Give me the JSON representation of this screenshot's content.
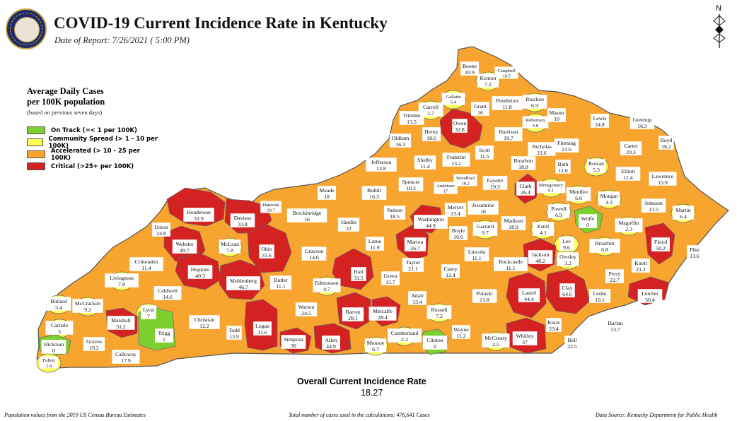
{
  "header": {
    "title": "COVID-19 Current Incidence Rate in Kentucky",
    "date_of_report": "Date of Report: 7/26/2021 ( 5:00 PM)",
    "seal_text": "COMMONWEALTH OF KENTUCKY"
  },
  "north_label": "N",
  "legend": {
    "title_line1": "Average Daily Cases",
    "title_line2": "per 100K population",
    "note": "(based on previous seven days)",
    "items": [
      {
        "label": "On Track (=< 1 per 100K)",
        "color": "#7dcf2f"
      },
      {
        "label": "Community Spread (> 1 - 10 per 100K)",
        "color": "#ffff55"
      },
      {
        "label": "Accelerated (> 10 - 25 per 100K)",
        "color": "#f8a530"
      },
      {
        "label": "Critical (>25+ per 100K)",
        "color": "#d42222"
      }
    ]
  },
  "overall": {
    "label": "Overall Current Incidence Rate",
    "value": "18.27"
  },
  "footer": {
    "left": "Population values from the 2019 US Census Bureau Estimates",
    "center": "Total number of cases used in the calculations: 476,641 Cases",
    "right": "Data Source: Kentucky Department for Public Health"
  },
  "state_color": "#f8a530",
  "counties": [
    {
      "name": "Boone",
      "rate": "10.9",
      "category": "accelerated"
    },
    {
      "name": "Campbell",
      "rate": "10.5",
      "category": "accelerated"
    },
    {
      "name": "Kenton",
      "rate": "7.2",
      "category": "community"
    },
    {
      "name": "Gallatin",
      "rate": "6.4",
      "category": "community"
    },
    {
      "name": "Carroll",
      "rate": "2.7",
      "category": "community"
    },
    {
      "name": "Owen",
      "rate": "32.8",
      "category": "critical"
    },
    {
      "name": "Grant",
      "rate": "16",
      "category": "accelerated"
    },
    {
      "name": "Pendleton",
      "rate": "11.8",
      "category": "accelerated"
    },
    {
      "name": "Bracken",
      "rate": "6.9",
      "category": "community"
    },
    {
      "name": "Mason",
      "rate": "10",
      "category": "accelerated"
    },
    {
      "name": "Robertson",
      "rate": "6.8",
      "category": "community"
    },
    {
      "name": "Lewis",
      "rate": "24.8",
      "category": "accelerated"
    },
    {
      "name": "Greenup",
      "rate": "16.3",
      "category": "accelerated"
    },
    {
      "name": "Boyd",
      "rate": "16.2",
      "category": "accelerated"
    },
    {
      "name": "Trimble",
      "rate": "13.5",
      "category": "accelerated"
    },
    {
      "name": "Henry",
      "rate": "18.6",
      "category": "accelerated"
    },
    {
      "name": "Harrison",
      "rate": "19.7",
      "category": "accelerated"
    },
    {
      "name": "Nicholas",
      "rate": "21.6",
      "category": "accelerated"
    },
    {
      "name": "Fleming",
      "rate": "21.6",
      "category": "accelerated"
    },
    {
      "name": "Carter",
      "rate": "20.3",
      "category": "accelerated"
    },
    {
      "name": "Oldham",
      "rate": "16.3",
      "category": "accelerated"
    },
    {
      "name": "Shelby",
      "rate": "11.4",
      "category": "accelerated"
    },
    {
      "name": "Franklin",
      "rate": "13.2",
      "category": "accelerated"
    },
    {
      "name": "Scott",
      "rate": "11.5",
      "category": "accelerated"
    },
    {
      "name": "Bourbon",
      "rate": "18.8",
      "category": "accelerated"
    },
    {
      "name": "Bath",
      "rate": "12.6",
      "category": "accelerated"
    },
    {
      "name": "Rowan",
      "rate": "5.3",
      "category": "community"
    },
    {
      "name": "Elliott",
      "rate": "11.4",
      "category": "accelerated"
    },
    {
      "name": "Lawrence",
      "rate": "15.9",
      "category": "accelerated"
    },
    {
      "name": "Jefferson",
      "rate": "13.8",
      "category": "accelerated"
    },
    {
      "name": "Spencer",
      "rate": "10.3",
      "category": "accelerated"
    },
    {
      "name": "Woodford",
      "rate": "18.2",
      "category": "accelerated"
    },
    {
      "name": "Anderson",
      "rate": "17",
      "category": "accelerated"
    },
    {
      "name": "Fayette",
      "rate": "19.3",
      "category": "accelerated"
    },
    {
      "name": "Clark",
      "rate": "26.4",
      "category": "critical"
    },
    {
      "name": "Montgomery",
      "rate": "9.1",
      "category": "community"
    },
    {
      "name": "Menifee",
      "rate": "6.6",
      "category": "community"
    },
    {
      "name": "Morgan",
      "rate": "4.3",
      "category": "community"
    },
    {
      "name": "Johnson",
      "rate": "13.5",
      "category": "accelerated"
    },
    {
      "name": "Martin",
      "rate": "6.4",
      "category": "community"
    },
    {
      "name": "Meade",
      "rate": "18",
      "category": "accelerated"
    },
    {
      "name": "Bullitt",
      "rate": "16.3",
      "category": "accelerated"
    },
    {
      "name": "Nelson",
      "rate": "18.5",
      "category": "accelerated"
    },
    {
      "name": "Washington",
      "rate": "44.9",
      "category": "critical"
    },
    {
      "name": "Mercer",
      "rate": "23.4",
      "category": "accelerated"
    },
    {
      "name": "Jessamine",
      "rate": "18",
      "category": "accelerated"
    },
    {
      "name": "Madison",
      "rate": "18.9",
      "category": "accelerated"
    },
    {
      "name": "Estill",
      "rate": "4.1",
      "category": "community"
    },
    {
      "name": "Powell",
      "rate": "6.9",
      "category": "community"
    },
    {
      "name": "Wolfe",
      "rate": "0",
      "category": "on_track"
    },
    {
      "name": "Magoffin",
      "rate": "2.3",
      "category": "community"
    },
    {
      "name": "Floyd",
      "rate": "50.2",
      "category": "critical"
    },
    {
      "name": "Pike",
      "rate": "13.6",
      "category": "accelerated"
    },
    {
      "name": "Hancock",
      "rate": "19.7",
      "category": "accelerated"
    },
    {
      "name": "Breckinridge",
      "rate": "16",
      "category": "accelerated"
    },
    {
      "name": "Hardin",
      "rate": "22",
      "category": "accelerated"
    },
    {
      "name": "Larue",
      "rate": "11.9",
      "category": "accelerated"
    },
    {
      "name": "Marion",
      "rate": "26.7",
      "category": "critical"
    },
    {
      "name": "Boyle",
      "rate": "16.6",
      "category": "accelerated"
    },
    {
      "name": "Garrard",
      "rate": "9.7",
      "category": "community"
    },
    {
      "name": "Lee",
      "rate": "9.6",
      "category": "community"
    },
    {
      "name": "Breathitt",
      "rate": "6.8",
      "category": "community"
    },
    {
      "name": "Knott",
      "rate": "21.2",
      "category": "accelerated"
    },
    {
      "name": "Henderson",
      "rate": "31.9",
      "category": "critical"
    },
    {
      "name": "Daviess",
      "rate": "33.8",
      "category": "critical"
    },
    {
      "name": "Union",
      "rate": "24.8",
      "category": "accelerated"
    },
    {
      "name": "Webster",
      "rate": "49.7",
      "category": "critical"
    },
    {
      "name": "McLean",
      "rate": "7.8",
      "category": "community"
    },
    {
      "name": "Ohio",
      "rate": "31.6",
      "category": "critical"
    },
    {
      "name": "Grayson",
      "rate": "14.6",
      "category": "accelerated"
    },
    {
      "name": "Hart",
      "rate": "31.5",
      "category": "critical"
    },
    {
      "name": "Taylor",
      "rate": "21.1",
      "category": "accelerated"
    },
    {
      "name": "Lincoln",
      "rate": "11.1",
      "category": "accelerated"
    },
    {
      "name": "Rockcastle",
      "rate": "11.1",
      "category": "accelerated"
    },
    {
      "name": "Jackson",
      "rate": "48.2",
      "category": "critical"
    },
    {
      "name": "Owsley",
      "rate": "3.2",
      "category": "community"
    },
    {
      "name": "Perry",
      "rate": "22.7",
      "category": "accelerated"
    },
    {
      "name": "Crittenden",
      "rate": "11.4",
      "category": "accelerated"
    },
    {
      "name": "Hopkins",
      "rate": "40.3",
      "category": "critical"
    },
    {
      "name": "Muhlenberg",
      "rate": "46.7",
      "category": "critical"
    },
    {
      "name": "Butler",
      "rate": "11.1",
      "category": "accelerated"
    },
    {
      "name": "Edmonson",
      "rate": "4.7",
      "category": "community"
    },
    {
      "name": "Green",
      "rate": "15.7",
      "category": "accelerated"
    },
    {
      "name": "Casey",
      "rate": "12.4",
      "category": "accelerated"
    },
    {
      "name": "Pulaski",
      "rate": "21.8",
      "category": "accelerated"
    },
    {
      "name": "Laurel",
      "rate": "44.4",
      "category": "critical"
    },
    {
      "name": "Clay",
      "rate": "64.6",
      "category": "critical"
    },
    {
      "name": "Leslie",
      "rate": "10.1",
      "category": "accelerated"
    },
    {
      "name": "Letcher",
      "rate": "50.4",
      "category": "critical"
    },
    {
      "name": "Livingston",
      "rate": "7.8",
      "category": "community"
    },
    {
      "name": "Caldwell",
      "rate": "14.6",
      "category": "accelerated"
    },
    {
      "name": "Lyon",
      "rate": "7",
      "category": "community"
    },
    {
      "name": "Christian",
      "rate": "12.2",
      "category": "accelerated"
    },
    {
      "name": "Todd",
      "rate": "13.9",
      "category": "accelerated"
    },
    {
      "name": "Logan",
      "rate": "31.6",
      "category": "critical"
    },
    {
      "name": "Warren",
      "rate": "24.5",
      "category": "accelerated"
    },
    {
      "name": "Barren",
      "rate": "28.1",
      "category": "critical"
    },
    {
      "name": "Metcalfe",
      "rate": "28.4",
      "category": "critical"
    },
    {
      "name": "Adair",
      "rate": "13.4",
      "category": "accelerated"
    },
    {
      "name": "Russell",
      "rate": "7.2",
      "category": "community"
    },
    {
      "name": "Knox",
      "rate": "23.4",
      "category": "accelerated"
    },
    {
      "name": "Harlan",
      "rate": "13.7",
      "category": "accelerated"
    },
    {
      "name": "Ballard",
      "rate": "5.4",
      "category": "community"
    },
    {
      "name": "McCracken",
      "rate": "9.2",
      "category": "community"
    },
    {
      "name": "Marshall",
      "rate": "31.2",
      "category": "critical"
    },
    {
      "name": "Trigg",
      "rate": "1",
      "category": "on_track"
    },
    {
      "name": "Carlisle",
      "rate": "3",
      "category": "community"
    },
    {
      "name": "Graves",
      "rate": "19.2",
      "category": "accelerated"
    },
    {
      "name": "Calloway",
      "rate": "17.9",
      "category": "accelerated"
    },
    {
      "name": "Hickman",
      "rate": "0",
      "category": "on_track"
    },
    {
      "name": "Fulton",
      "rate": "2.4",
      "category": "community"
    },
    {
      "name": "Simpson",
      "rate": "30",
      "category": "critical"
    },
    {
      "name": "Allen",
      "rate": "44.9",
      "category": "critical"
    },
    {
      "name": "Monroe",
      "rate": "6.7",
      "category": "community"
    },
    {
      "name": "Cumberland",
      "rate": "2.2",
      "category": "community"
    },
    {
      "name": "Clinton",
      "rate": "0",
      "category": "on_track"
    },
    {
      "name": "Wayne",
      "rate": "11.2",
      "category": "accelerated"
    },
    {
      "name": "McCreary",
      "rate": "2.5",
      "category": "community"
    },
    {
      "name": "Whitley",
      "rate": "37",
      "category": "critical"
    },
    {
      "name": "Bell",
      "rate": "22.5",
      "category": "accelerated"
    }
  ]
}
